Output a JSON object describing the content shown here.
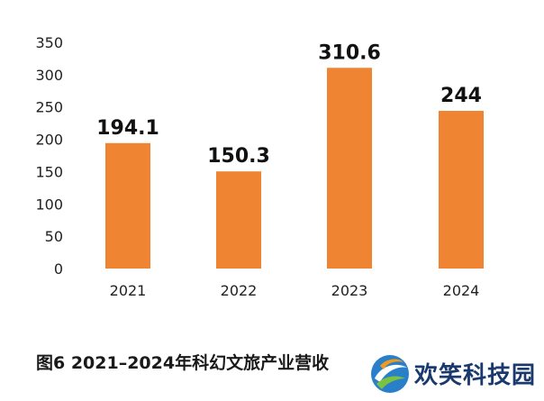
{
  "chart_data": {
    "type": "bar",
    "categories": [
      "2021",
      "2022",
      "2023",
      "2024"
    ],
    "values": [
      194.1,
      150.3,
      310.6,
      244
    ],
    "value_labels": [
      "194.1",
      "150.3",
      "310.6",
      "244"
    ],
    "yticks": [
      0,
      50,
      100,
      150,
      200,
      250,
      300,
      350
    ],
    "ylim": [
      0,
      350
    ],
    "grid": false,
    "bar_color": "#ef8532",
    "title": "图6  2021–2024年科幻文旅产业营收"
  },
  "watermark": {
    "text": "欢笑科技园",
    "logo_icon": "globe-swirl-logo-icon"
  }
}
